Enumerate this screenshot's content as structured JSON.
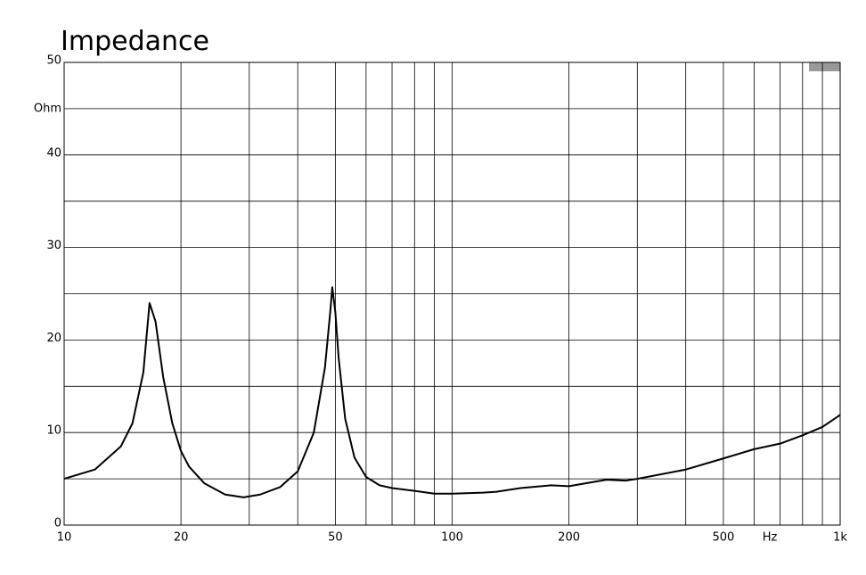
{
  "chart_data": {
    "type": "line",
    "title": "Impedance",
    "y_unit": "Ohm",
    "x_unit": "Hz",
    "x_log": true,
    "grid": true,
    "xlim": [
      10,
      1000
    ],
    "ylim": [
      0,
      50
    ],
    "xticks": [
      10,
      20,
      50,
      100,
      200,
      500,
      {
        "value": 1000,
        "label": "1k"
      }
    ],
    "xminor": [
      30,
      40,
      60,
      70,
      80,
      90,
      300,
      400,
      600,
      700,
      800,
      900
    ],
    "yticks": [
      0,
      10,
      20,
      30,
      40,
      50
    ],
    "yminor": [
      5,
      15,
      25,
      35,
      45
    ],
    "x": [
      10,
      12,
      14,
      15,
      16,
      16.6,
      17.2,
      18,
      19,
      20,
      21,
      23,
      26,
      29,
      32,
      36,
      40,
      44,
      47,
      48.5,
      49.1,
      50,
      51,
      53,
      56,
      60,
      65,
      70,
      80,
      90,
      100,
      120,
      130,
      150,
      180,
      200,
      220,
      250,
      280,
      300,
      400,
      500,
      600,
      700,
      800,
      900,
      1000
    ],
    "series": [
      {
        "name": "Impedance",
        "color": "#000000",
        "values": [
          5,
          6,
          8.5,
          11,
          16.5,
          24,
          22,
          16,
          11,
          8,
          6.3,
          4.5,
          3.3,
          3.0,
          3.3,
          4.1,
          5.8,
          10,
          17,
          23,
          25.7,
          23,
          18,
          11.5,
          7.3,
          5.2,
          4.3,
          4.0,
          3.7,
          3.4,
          3.4,
          3.5,
          3.6,
          4.0,
          4.3,
          4.2,
          4.5,
          4.9,
          4.8,
          5.0,
          6.0,
          7.2,
          8.2,
          8.8,
          9.7,
          10.6,
          11.9
        ]
      }
    ]
  }
}
